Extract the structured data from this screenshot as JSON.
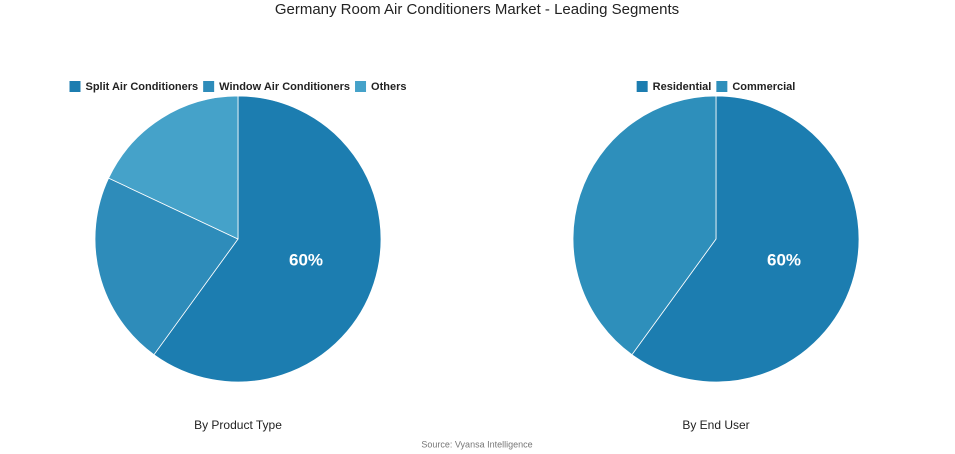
{
  "title": "Germany Room Air Conditioners Market - Leading Segments",
  "source": "Source: Vyansa Intelligence",
  "chart_data": [
    {
      "type": "pie",
      "subtitle": "By Product Type",
      "categories": [
        "Split Air Conditioners",
        "Window Air Conditioners",
        "Others"
      ],
      "values": [
        60,
        22,
        18
      ],
      "value_labels": [
        "60%",
        null,
        null
      ],
      "colors": [
        "#1c7db0",
        "#2e8cba",
        "#45a2c9"
      ],
      "legend": "top"
    },
    {
      "type": "pie",
      "subtitle": "By End User",
      "categories": [
        "Residential",
        "Commercial"
      ],
      "values": [
        60,
        40
      ],
      "value_labels": [
        "60%",
        null
      ],
      "colors": [
        "#1c7db0",
        "#2e8fbb"
      ],
      "legend": "top"
    }
  ]
}
